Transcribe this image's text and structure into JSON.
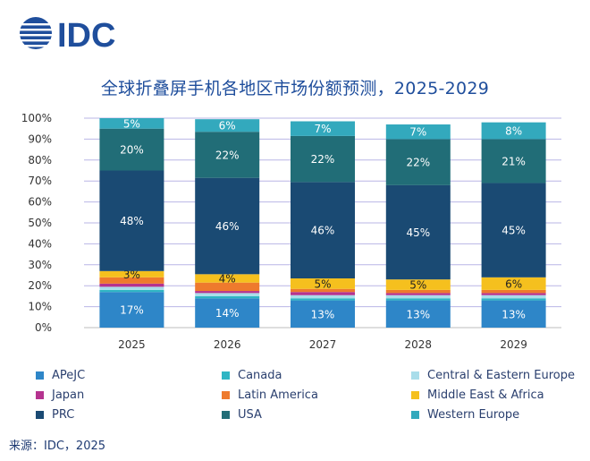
{
  "brand": {
    "logo_text": "IDC",
    "color": "#1f4e9c"
  },
  "chart_data": {
    "type": "bar",
    "stacked": true,
    "percent": true,
    "title": "全球折叠屏手机各地区市场份额预测，2025-2029",
    "categories": [
      "2025",
      "2026",
      "2027",
      "2028",
      "2029"
    ],
    "ylim": [
      0,
      100
    ],
    "yticks": [
      "0%",
      "10%",
      "20%",
      "30%",
      "40%",
      "50%",
      "60%",
      "70%",
      "80%",
      "90%",
      "100%"
    ],
    "grid": true,
    "legend_position": "bottom",
    "series": [
      {
        "name": "APeJC",
        "color": "#2e86c8",
        "values": [
          17,
          14,
          13,
          13,
          13
        ],
        "labels": [
          "17%",
          "14%",
          "13%",
          "13%",
          "13%"
        ]
      },
      {
        "name": "Canada",
        "color": "#2fb5c4",
        "values": [
          1,
          1,
          1,
          1,
          1
        ],
        "labels": [
          "",
          "",
          "",
          "",
          ""
        ]
      },
      {
        "name": "Central & Eastern Europe",
        "color": "#a9ddea",
        "values": [
          1.5,
          1.5,
          1.5,
          1.5,
          1.5
        ],
        "labels": [
          "",
          "",
          "",
          "",
          ""
        ]
      },
      {
        "name": "Japan",
        "color": "#b5338f",
        "values": [
          1.5,
          1,
          1.5,
          1,
          1
        ],
        "labels": [
          "",
          "",
          "",
          "",
          ""
        ]
      },
      {
        "name": "Latin America",
        "color": "#ee7a2d",
        "values": [
          3,
          4,
          1.5,
          1.5,
          1.5
        ],
        "labels": [
          "",
          "",
          "",
          "",
          ""
        ]
      },
      {
        "name": "Middle East & Africa",
        "color": "#f5c01e",
        "values": [
          3,
          4,
          5,
          5,
          6
        ],
        "labels": [
          "3%",
          "4%",
          "5%",
          "5%",
          "6%"
        ]
      },
      {
        "name": "PRC",
        "color": "#1a4a73",
        "values": [
          48,
          46,
          46,
          45,
          45
        ],
        "labels": [
          "48%",
          "46%",
          "46%",
          "45%",
          "45%"
        ]
      },
      {
        "name": "USA",
        "color": "#216d77",
        "values": [
          20,
          22,
          22,
          22,
          21
        ],
        "labels": [
          "20%",
          "22%",
          "22%",
          "22%",
          "21%"
        ]
      },
      {
        "name": "Western Europe",
        "color": "#33a9bd",
        "values": [
          5,
          6,
          7,
          7,
          8
        ],
        "labels": [
          "5%",
          "6%",
          "7%",
          "7%",
          "8%"
        ]
      }
    ]
  },
  "source": "来源：IDC，2025"
}
